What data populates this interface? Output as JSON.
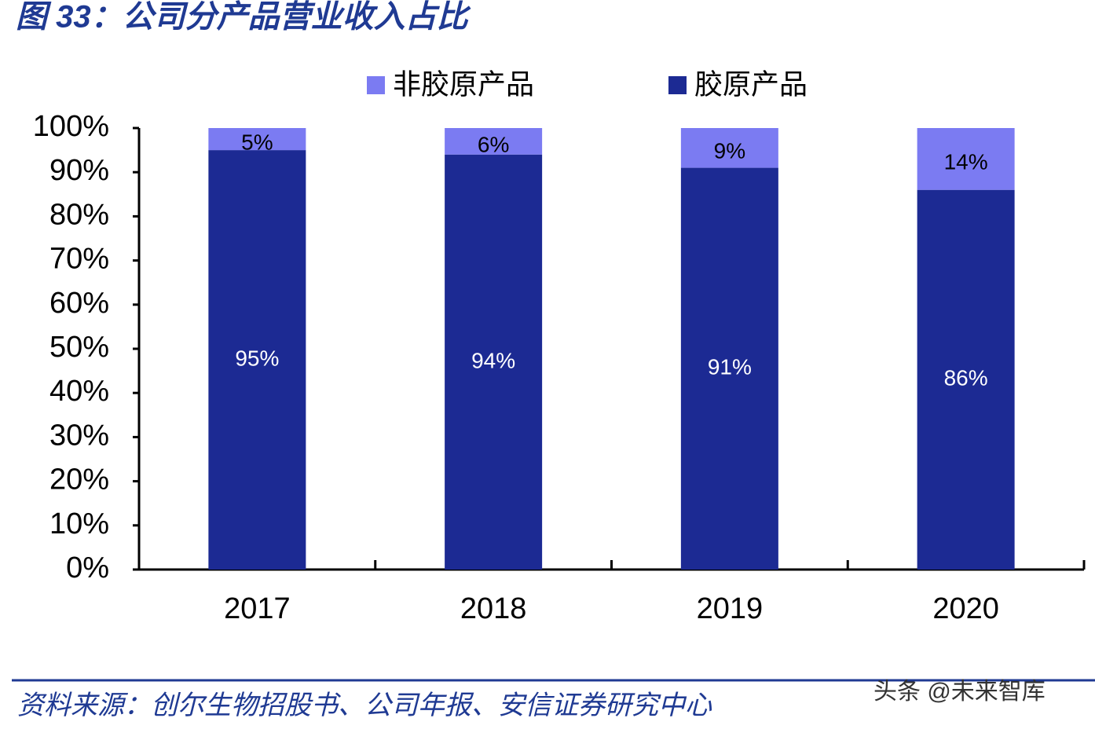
{
  "chart_data": {
    "type": "stacked_bar",
    "title": "图 33：公司分产品营业收入占比",
    "source": "资料来源：创尔生物招股书、公司年报、安信证券研究中心",
    "watermark": "头条 @未来智库",
    "categories": [
      "2017",
      "2018",
      "2019",
      "2020"
    ],
    "series": [
      {
        "name": "非胶原产品",
        "color": "#7b7bf2",
        "values": [
          5,
          6,
          9,
          14
        ],
        "value_labels": [
          "5%",
          "6%",
          "9%",
          "14%"
        ]
      },
      {
        "name": "胶原产品",
        "color": "#1c2a93",
        "values": [
          95,
          94,
          91,
          86
        ],
        "value_labels": [
          "95%",
          "94%",
          "91%",
          "86%"
        ]
      }
    ],
    "ylim": [
      0,
      100
    ],
    "yticks": [
      {
        "value": 0,
        "label": "0%"
      },
      {
        "value": 10,
        "label": "10%"
      },
      {
        "value": 20,
        "label": "20%"
      },
      {
        "value": 30,
        "label": "30%"
      },
      {
        "value": 40,
        "label": "40%"
      },
      {
        "value": 50,
        "label": "50%"
      },
      {
        "value": 60,
        "label": "60%"
      },
      {
        "value": 70,
        "label": "70%"
      },
      {
        "value": 80,
        "label": "80%"
      },
      {
        "value": 90,
        "label": "90%"
      },
      {
        "value": 100,
        "label": "100%"
      }
    ],
    "legend": "top"
  }
}
